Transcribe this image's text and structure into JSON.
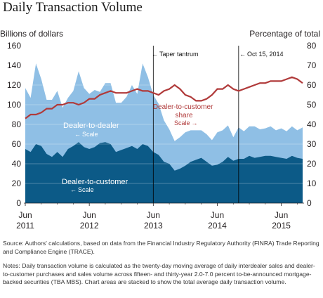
{
  "title": "Daily Transaction Volume",
  "left_axis_label": "Billions of dollars",
  "right_axis_label": "Percentage of total",
  "source": "Source: Authors' calculations, based on data from the Financial Industry Regulatory Authority (FINRA) Trade Reporting and Compliance Engine (TRACE).",
  "notes": "Notes: Daily transaction volume is calculated as the twenty-day moving average of daily interdealer sales and dealer-to-customer purchases and sales volume across fifteen- and thirty-year 2.0-7.0 percent to-be-announced mortgage-backed securities (TBA MBS). Chart areas are stacked to show the total average daily transaction volume.",
  "colors": {
    "dealer_to_dealer": "#8fbfe5",
    "dealer_to_customer": "#0c5a87",
    "share_line": "#b03a3a",
    "event_line": "#000000"
  },
  "chart_data": {
    "type": "area",
    "title": "Daily Transaction Volume",
    "left_axis": {
      "label": "Billions of dollars",
      "range": [
        0,
        160
      ],
      "ticks": [
        0,
        20,
        40,
        60,
        80,
        100,
        120,
        140,
        160
      ]
    },
    "right_axis": {
      "label": "Percentage of total",
      "range": [
        0,
        80
      ],
      "ticks": [
        0,
        10,
        20,
        30,
        40,
        50,
        60,
        70,
        80
      ]
    },
    "x_tick_labels": [
      {
        "month": "Jun",
        "year": "2011"
      },
      {
        "month": "Jun",
        "year": "2012"
      },
      {
        "month": "Jun",
        "year": "2013"
      },
      {
        "month": "Jun",
        "year": "2014"
      },
      {
        "month": "Jun",
        "year": "2015"
      }
    ],
    "x": [
      "Jun 2011",
      "Jul 2011",
      "Aug 2011",
      "Sep 2011",
      "Oct 2011",
      "Nov 2011",
      "Dec 2011",
      "Jan 2012",
      "Feb 2012",
      "Mar 2012",
      "Apr 2012",
      "May 2012",
      "Jun 2012",
      "Jul 2012",
      "Aug 2012",
      "Sep 2012",
      "Oct 2012",
      "Nov 2012",
      "Dec 2012",
      "Jan 2013",
      "Feb 2013",
      "Mar 2013",
      "Apr 2013",
      "May 2013",
      "Jun 2013",
      "Jul 2013",
      "Aug 2013",
      "Sep 2013",
      "Oct 2013",
      "Nov 2013",
      "Dec 2013",
      "Jan 2014",
      "Feb 2014",
      "Mar 2014",
      "Apr 2014",
      "May 2014",
      "Jun 2014",
      "Jul 2014",
      "Aug 2014",
      "Sep 2014",
      "Oct 2014",
      "Nov 2014",
      "Dec 2014",
      "Jan 2015",
      "Feb 2015",
      "Mar 2015",
      "Apr 2015",
      "May 2015",
      "Jun 2015",
      "Jul 2015",
      "Aug 2015",
      "Sep 2015",
      "Oct 2015"
    ],
    "series": [
      {
        "name": "Dealer-to-customer",
        "axis": "left",
        "annotation": "Scale",
        "values": [
          55,
          52,
          60,
          58,
          50,
          47,
          52,
          47,
          55,
          58,
          62,
          57,
          55,
          57,
          61,
          62,
          60,
          52,
          54,
          56,
          58,
          55,
          60,
          58,
          52,
          49,
          42,
          40,
          33,
          35,
          38,
          42,
          44,
          46,
          42,
          38,
          39,
          42,
          47,
          43,
          45,
          45,
          48,
          46,
          47,
          48,
          48,
          47,
          46,
          45,
          48,
          46,
          45
        ]
      },
      {
        "name": "Dealer-to-dealer",
        "axis": "left",
        "annotation": "Scale",
        "values": [
          62,
          55,
          82,
          68,
          55,
          58,
          62,
          50,
          52,
          56,
          72,
          60,
          56,
          58,
          52,
          60,
          62,
          50,
          48,
          52,
          62,
          56,
          82,
          70,
          58,
          52,
          42,
          35,
          30,
          32,
          34,
          32,
          30,
          28,
          28,
          26,
          33,
          32,
          32,
          24,
          32,
          28,
          30,
          32,
          28,
          28,
          30,
          27,
          30,
          28,
          30,
          28,
          32
        ]
      },
      {
        "name": "Dealer-to-customer share",
        "axis": "right",
        "annotation": "Scale",
        "values": [
          43,
          45,
          45,
          46,
          48,
          48,
          50,
          50,
          51,
          51,
          50,
          51,
          53,
          53,
          55,
          56,
          57,
          56,
          56,
          56,
          57,
          58,
          57,
          57,
          56,
          55,
          57,
          58,
          60,
          58,
          55,
          54,
          52,
          52,
          53,
          55,
          58,
          58,
          60,
          58,
          57,
          58,
          59,
          60,
          61,
          61,
          62,
          62,
          62,
          63,
          64,
          63,
          61
        ]
      }
    ],
    "annotations": [
      "Taper tantrum",
      "Oct 15, 2014"
    ]
  }
}
